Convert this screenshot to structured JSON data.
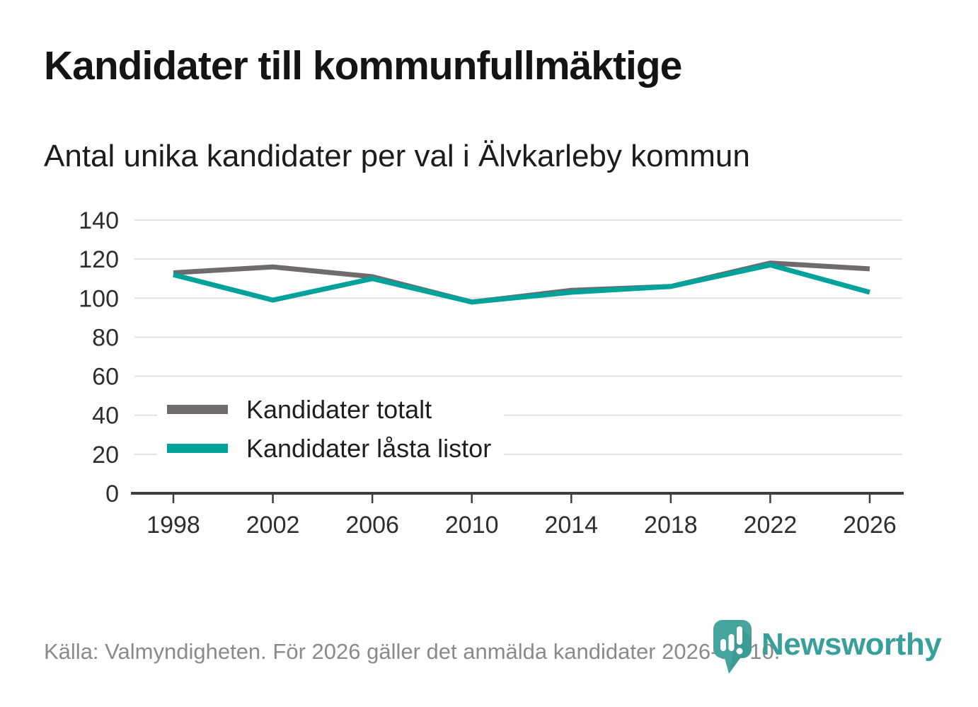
{
  "header": {
    "title": "Kandidater till kommunfullmäktige",
    "subtitle": "Antal unika kandidater per val i Älvkarleby kommun"
  },
  "chart_data": {
    "type": "line",
    "title": "Kandidater till kommunfullmäktige",
    "subtitle": "Antal unika kandidater per val i Älvkarleby kommun",
    "x": [
      1998,
      2002,
      2006,
      2010,
      2014,
      2018,
      2022,
      2026
    ],
    "xtick_labels": [
      "1998",
      "2002",
      "2006",
      "2010",
      "2014",
      "2018",
      "2022",
      "2026"
    ],
    "series": [
      {
        "name": "Kandidater totalt",
        "color": "#6e6a6e",
        "values": [
          113,
          116,
          111,
          98,
          104,
          106,
          118,
          115
        ]
      },
      {
        "name": "Kandidater låsta listor",
        "color": "#00a29a",
        "values": [
          112,
          99,
          110,
          98,
          103,
          106,
          117,
          103
        ]
      }
    ],
    "ylim": [
      0,
      140
    ],
    "yticks": [
      0,
      20,
      40,
      60,
      80,
      100,
      120,
      140
    ],
    "grid": true,
    "legend_position": "inside-left",
    "gridline_color": "#e3e3e3",
    "axis_color": "#3f3f3f",
    "tick_label_color": "#2e2e2e",
    "line_width": 7
  },
  "legend": {
    "items": [
      {
        "label": "Kandidater totalt",
        "color": "#6e6a6e"
      },
      {
        "label": "Kandidater låsta listor",
        "color": "#00a29a"
      }
    ]
  },
  "footer": {
    "source": "Källa: Valmyndigheten. För 2026 gäller det anmälda kandidater 2026-04-10.",
    "brand": "Newsworthy",
    "brand_color": "#38a09a",
    "icon_color": "#45a49d",
    "icon_shade_color": "#2f8d88"
  }
}
